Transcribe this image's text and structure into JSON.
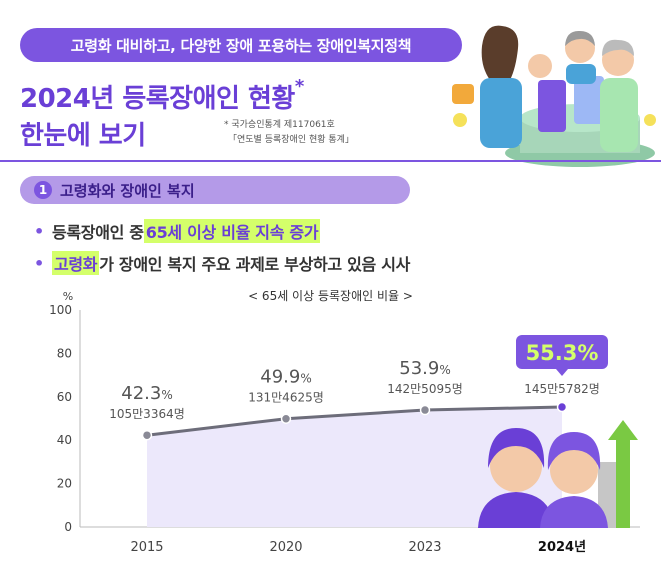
{
  "header": {
    "banner": "고령화 대비하고, 다양한 장애 포용하는 장애인복지정책",
    "title_line1": "2024년 등록장애인 현황",
    "title_mark": "*",
    "title_line2": "한눈에 보기",
    "note_line1": "* 국가승인통계 제117061호",
    "note_line2": "「연도별 등록장애인 현황 통계」"
  },
  "section": {
    "number": "1",
    "label": "고령화와 장애인 복지"
  },
  "bullets": [
    {
      "dot": "•",
      "pre": "등록장애인 중 ",
      "highlight": "65세 이상 비율 지속 증가",
      "post": ""
    },
    {
      "dot": "•",
      "pre": "",
      "highlight": "고령화",
      "post": "가 장애인 복지 주요 과제로 부상하고 있음 시사"
    }
  ],
  "chart_data": {
    "type": "line",
    "title": "< 65세 이상 등록장애인 비율 >",
    "yunit": "%",
    "categories": [
      "2015",
      "2020",
      "2023",
      "2024년"
    ],
    "values": [
      42.3,
      49.9,
      53.9,
      55.3
    ],
    "value_labels": [
      "42.3",
      "49.9",
      "53.9",
      "55.3%"
    ],
    "value_suffix": "%",
    "counts": [
      "105만3364명",
      "131만4625명",
      "142만5095명",
      "145만5782명"
    ],
    "ylim": [
      0,
      100
    ],
    "yticks": [
      0,
      20,
      40,
      60,
      80,
      100
    ],
    "grid": false,
    "highlight_index": 3,
    "colors": {
      "line": "#6d6d7a",
      "point": "#8a8a96",
      "highlight_point": "#6a3fd6",
      "area": "#ece8fb",
      "badge": "#7c55e0"
    }
  }
}
